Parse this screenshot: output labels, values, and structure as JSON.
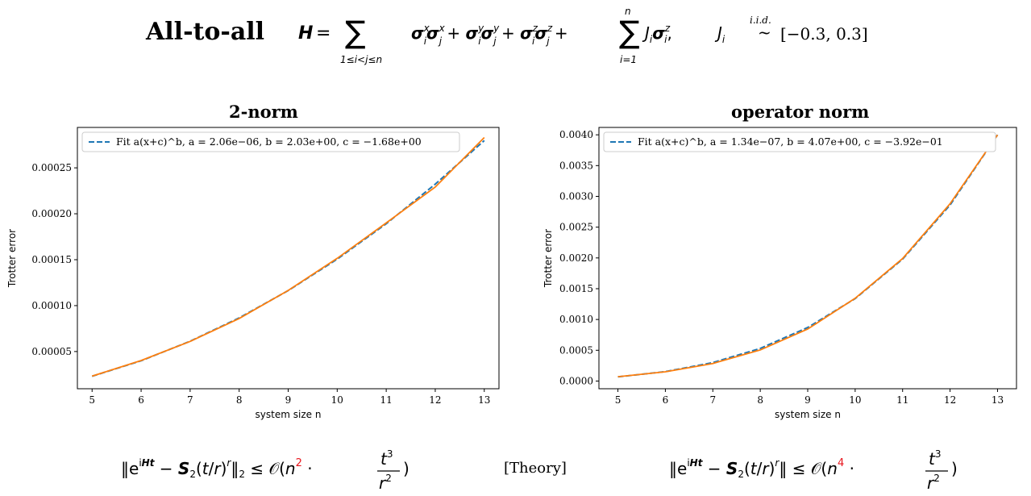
{
  "header": {
    "title": "All-to-all",
    "hamiltonian": "H = ∑_{1≤i<j≤n} σ_i^x σ_j^x + σ_i^y σ_j^y + σ_i^z σ_j^z + ∑_{i=1}^{n} J_i σ_i^z,  J_i ~ i.i.d. [−0.3, 0.3]",
    "sum_range": "1≤i<j≤n",
    "sum2_lower": "i=1",
    "sum2_upper": "n",
    "iid_label": "i.i.d.",
    "interval": "[−0.3, 0.3]"
  },
  "panels": {
    "left_title": "2-norm",
    "right_title": "operator norm"
  },
  "footer": {
    "left_bound": "‖e^{iHt} − S₂(t/r)^r‖₂ ≤ O(n² · t³/r²)",
    "left_exponent": "2",
    "theory": "[Theory]",
    "right_bound": "‖e^{iHt} − S₂(t/r)^r‖ ≤ O(n⁴ · t³/r²)",
    "right_exponent": "4",
    "exponent_color": "#e8141b"
  },
  "chart_data": [
    {
      "type": "line",
      "panel": "2-norm",
      "xlabel": "system size n",
      "ylabel": "Trotter error",
      "x": [
        5,
        6,
        7,
        8,
        9,
        10,
        11,
        12,
        13
      ],
      "xticks": [
        "5",
        "6",
        "7",
        "8",
        "9",
        "10",
        "11",
        "12",
        "13"
      ],
      "yticks": [
        "0.00005",
        "0.00010",
        "0.00015",
        "0.00020",
        "0.00025"
      ],
      "ytick_values": [
        5e-05,
        0.0001,
        0.00015,
        0.0002,
        0.00025
      ],
      "xlim": [
        4.7,
        13.3
      ],
      "ylim": [
        9.5e-06,
        0.000294
      ],
      "legend_position": "top-left",
      "series": [
        {
          "name": "Fit a(x+c)^b, a = 2.06e−06, b = 2.03e+00, c = −1.68e+00",
          "style": "dashed",
          "color": "#1f77b4",
          "values": [
            2.31e-05,
            4e-05,
            6.12e-05,
            8.66e-05,
            0.0001164,
            0.0001506,
            0.0001892,
            0.0002322,
            0.0002797
          ]
        },
        {
          "name": "",
          "style": "solid",
          "color": "#ff7f0e",
          "values": [
            2.32e-05,
            4.02e-05,
            6.1e-05,
            8.6e-05,
            0.0001165,
            0.0001515,
            0.00019,
            0.000229,
            0.000283
          ]
        }
      ]
    },
    {
      "type": "line",
      "panel": "operator norm",
      "xlabel": "system size n",
      "ylabel": "Trotter error",
      "x": [
        5,
        6,
        7,
        8,
        9,
        10,
        11,
        12,
        13
      ],
      "xticks": [
        "5",
        "6",
        "7",
        "8",
        "9",
        "10",
        "11",
        "12",
        "13"
      ],
      "yticks": [
        "0.0000",
        "0.0005",
        "0.0010",
        "0.0015",
        "0.0020",
        "0.0025",
        "0.0030",
        "0.0035",
        "0.0040"
      ],
      "ytick_values": [
        0.0,
        0.0005,
        0.001,
        0.0015,
        0.002,
        0.0025,
        0.003,
        0.0035,
        0.004
      ],
      "xlim": [
        4.6,
        13.4
      ],
      "ylim": [
        -0.000125,
        0.00412
      ],
      "legend_position": "top-left",
      "series": [
        {
          "name": "Fit a(x+c)^b, a = 1.34e−07, b = 4.07e+00, c = −3.92e−01",
          "style": "dashed",
          "color": "#1f77b4",
          "values": [
            6.8e-05,
            0.000153,
            0.0003,
            0.00053,
            0.00087,
            0.00134,
            0.00198,
            0.00286,
            0.004
          ]
        },
        {
          "name": "",
          "style": "solid",
          "color": "#ff7f0e",
          "values": [
            7e-05,
            0.00015,
            0.000285,
            0.000505,
            0.000845,
            0.001345,
            0.00199,
            0.00288,
            0.004
          ]
        }
      ]
    }
  ]
}
